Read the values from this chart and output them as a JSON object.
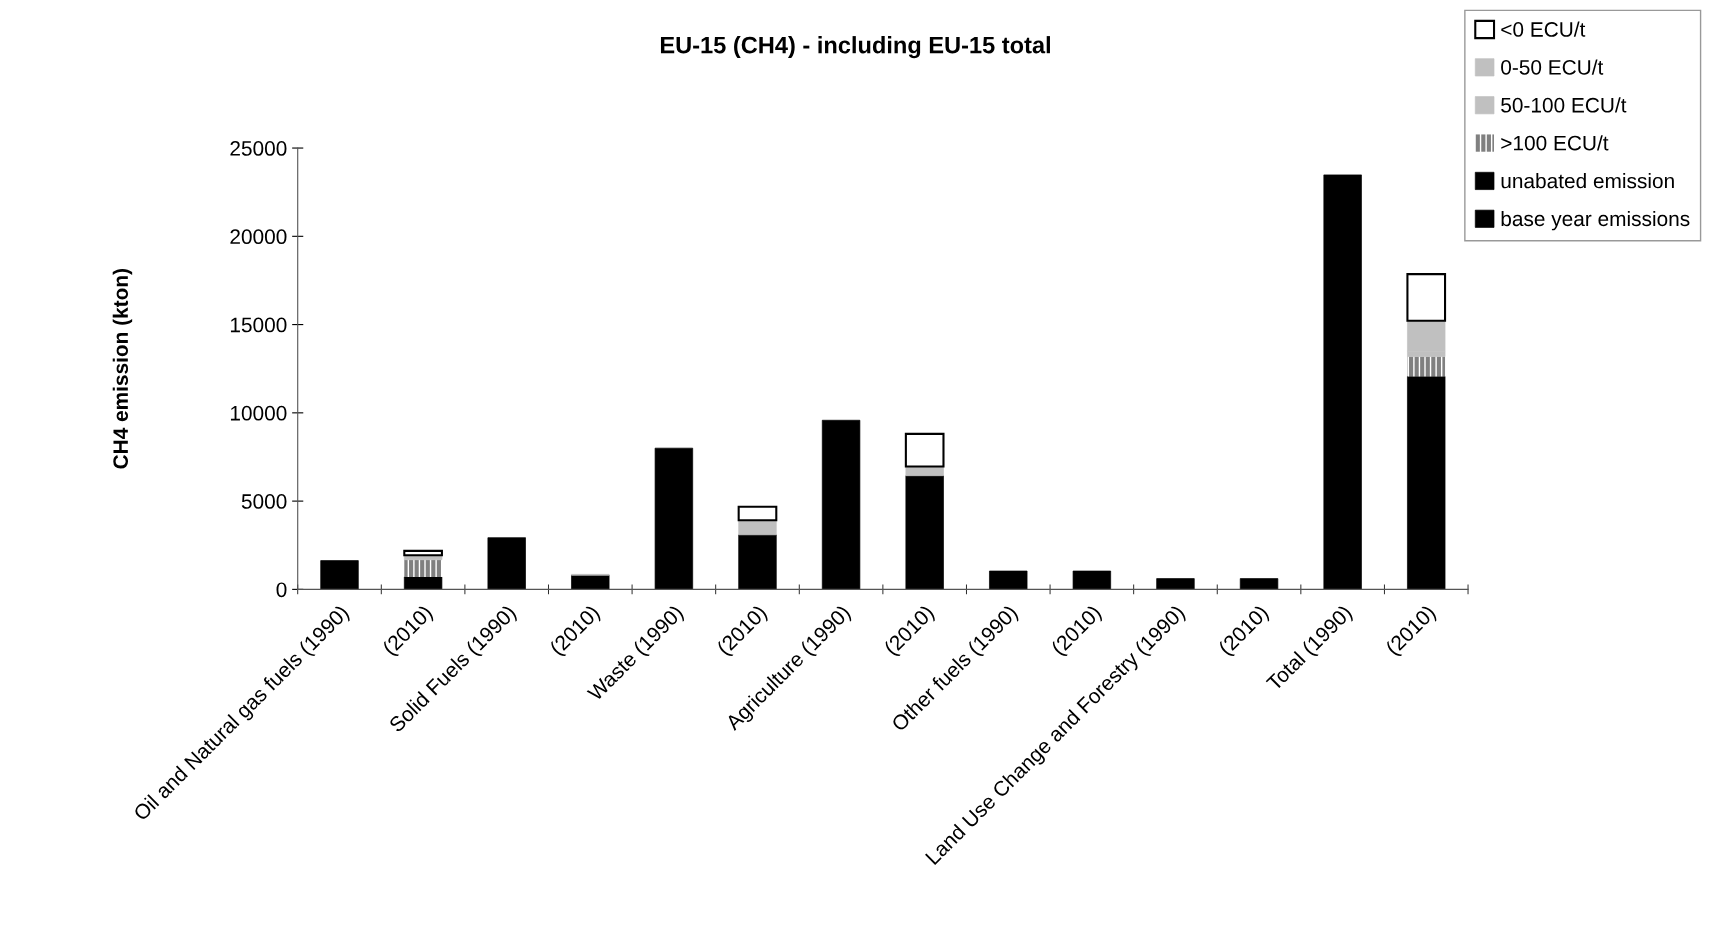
{
  "chart_data": {
    "type": "bar",
    "title": "EU-15 (CH4) - including EU-15 total",
    "ylabel": "CH4 emission (kton)",
    "categories": [
      "Oil and Natural gas fuels (1990)",
      "(2010)",
      "Solid Fuels (1990)",
      "(2010)",
      "Waste (1990)",
      "(2010)",
      "Agriculture (1990)",
      "(2010)",
      "Other fuels (1990)",
      "(2010)",
      "Land Use Change and Forestry (1990)",
      "(2010)",
      "Total (1990)",
      "(2010)"
    ],
    "stacked": true,
    "series": [
      {
        "name": "base year emissions",
        "color": "#000000",
        "values": [
          1630,
          null,
          2930,
          null,
          8000,
          null,
          9580,
          null,
          1040,
          null,
          610,
          null,
          23480,
          null
        ]
      },
      {
        "name": "unabated emission",
        "color": "#000000",
        "values": [
          null,
          700,
          null,
          800,
          null,
          3090,
          null,
          6440,
          null,
          1040,
          null,
          610,
          null,
          12060
        ]
      },
      {
        "name": ">100 ECU/t",
        "color": "#808080",
        "values": [
          null,
          980,
          null,
          null,
          null,
          null,
          null,
          null,
          null,
          null,
          null,
          null,
          null,
          1130
        ]
      },
      {
        "name": "50-100 ECU/t",
        "color": "#c0c0c0",
        "values": [
          null,
          null,
          null,
          null,
          null,
          null,
          null,
          null,
          null,
          null,
          null,
          null,
          null,
          300
        ]
      },
      {
        "name": "0-50 ECU/t",
        "color": "#c0c0c0",
        "values": [
          null,
          250,
          null,
          50,
          null,
          830,
          null,
          520,
          null,
          null,
          null,
          null,
          null,
          1730
        ]
      },
      {
        "name": "<0 ECU/t",
        "color": "#ffffff",
        "values": [
          null,
          250,
          null,
          null,
          null,
          760,
          null,
          1850,
          null,
          null,
          null,
          null,
          null,
          2640
        ]
      }
    ],
    "ylim": [
      0,
      25000
    ],
    "yticks": [
      0,
      5000,
      10000,
      15000,
      20000,
      25000
    ],
    "grid": false,
    "legend": "top right"
  }
}
